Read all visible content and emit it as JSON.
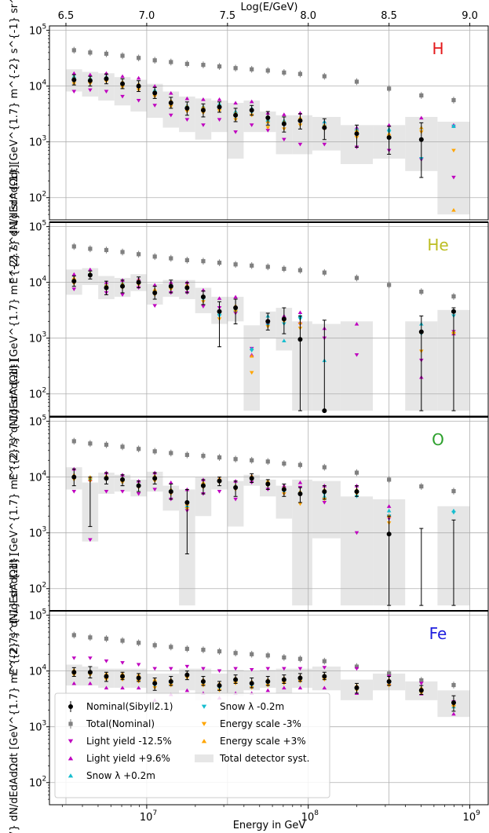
{
  "chart_data": {
    "type": "scatter",
    "x_axis": {
      "label": "Energy in GeV",
      "scale": "log",
      "range": [
        2500000,
        1300000000
      ],
      "ticks": [
        {
          "v": 10000000,
          "b": "10",
          "e": "7"
        },
        {
          "v": 100000000,
          "b": "10",
          "e": "8"
        },
        {
          "v": 1000000000,
          "b": "10",
          "e": "9"
        }
      ]
    },
    "top_axis": {
      "label": "Log(E/GeV)",
      "ticks": [
        "6.5",
        "7.0",
        "7.5",
        "8.0",
        "8.5",
        "9.0"
      ]
    },
    "y_axis": {
      "label": "E^{2.7} dN/dEdAdΩdt [GeV^{1.7} m^{-2} s^{-1} sr^{-1}]",
      "scale": "log",
      "range": [
        40,
        120000
      ],
      "ticks": [
        {
          "v": 100,
          "b": "10",
          "e": "2"
        },
        {
          "v": 1000,
          "b": "10",
          "e": "3"
        },
        {
          "v": 10000,
          "b": "10",
          "e": "4"
        },
        {
          "v": 100000,
          "b": "10",
          "e": "5"
        }
      ]
    },
    "legend": {
      "placement": "lower-left",
      "entries": [
        {
          "key": "nominal",
          "label": "Nominal(Sibyll2.1)"
        },
        {
          "key": "total",
          "label": "Total(Nominal)"
        },
        {
          "key": "ly_down",
          "label": "Light yield -12.5%"
        },
        {
          "key": "ly_up",
          "label": "Light yield +9.6%"
        },
        {
          "key": "snow_up",
          "label": "Snow λ +0.2m"
        },
        {
          "key": "snow_down",
          "label": "Snow λ -0.2m"
        },
        {
          "key": "es_down",
          "label": "Energy scale -3%"
        },
        {
          "key": "es_up",
          "label": "Energy scale +3%"
        },
        {
          "key": "syst",
          "label": "Total detector syst."
        }
      ]
    },
    "colors": {
      "nominal": "#000000",
      "total": "#808080",
      "ly_down": "#bf00bf",
      "ly_up": "#bf00bf",
      "snow_up": "#17becf",
      "snow_down": "#17becf",
      "es_down": "#ffa500",
      "es_up": "#ffa500",
      "syst": "#e6e6e6"
    },
    "log_energy_bins": [
      6.55,
      6.65,
      6.75,
      6.85,
      6.95,
      7.05,
      7.15,
      7.25,
      7.35,
      7.45,
      7.55,
      7.65,
      7.75,
      7.85,
      7.95,
      8.1,
      8.3,
      8.5,
      8.7,
      8.9
    ],
    "total": [
      44000,
      40000,
      38000,
      35000,
      32000,
      29000,
      27000,
      25000,
      24000,
      22500,
      21000,
      20000,
      19000,
      17500,
      16500,
      15000,
      12000,
      9000,
      6800,
      5600
    ],
    "panels": [
      {
        "label": "H",
        "label_color": "#e41a1c",
        "nominal": [
          13000,
          12500,
          13500,
          11000,
          10000,
          7500,
          5000,
          4000,
          3700,
          4200,
          3000,
          3700,
          2700,
          2100,
          2400,
          1800,
          1400,
          1200,
          1100,
          null
        ],
        "err_low": [
          10500,
          10000,
          11000,
          9000,
          8000,
          6000,
          4000,
          3000,
          2800,
          3400,
          2300,
          3000,
          2000,
          1500,
          1700,
          1100,
          800,
          600,
          230,
          null
        ],
        "err_high": [
          16000,
          15000,
          16500,
          13500,
          12500,
          9500,
          6300,
          5200,
          4800,
          5200,
          4000,
          4500,
          3500,
          2800,
          3200,
          2600,
          2000,
          1900,
          2200,
          null
        ],
        "syst_low": [
          8000,
          6500,
          5500,
          4500,
          3500,
          2700,
          1800,
          1500,
          1100,
          1500,
          500,
          1500,
          1500,
          600,
          600,
          700,
          400,
          500,
          300,
          50
        ],
        "syst_high": [
          20000,
          18000,
          17000,
          14500,
          13000,
          11000,
          8000,
          6500,
          6000,
          5500,
          5000,
          5500,
          3500,
          3000,
          3000,
          2800,
          2000,
          2000,
          2800,
          2300
        ],
        "ly_down": [
          8000,
          8500,
          8000,
          6500,
          5500,
          4500,
          3000,
          2500,
          2000,
          2500,
          1500,
          2000,
          1600,
          1100,
          900,
          900,
          800,
          700,
          480,
          230
        ],
        "ly_up": [
          17000,
          16000,
          17000,
          15000,
          14000,
          10000,
          7500,
          6000,
          5800,
          5800,
          5000,
          5300,
          3300,
          3100,
          3300,
          2300,
          1800,
          2000,
          2700,
          2000
        ],
        "snow_up": [
          15000,
          14000,
          15000,
          12000,
          11000,
          8500,
          5500,
          4500,
          4300,
          4800,
          3500,
          4000,
          2500,
          2400,
          2600,
          2300,
          1700,
          1700,
          1800,
          1900
        ],
        "snow_down": [
          12000,
          11500,
          12500,
          10500,
          9500,
          7000,
          4800,
          4000,
          3700,
          4000,
          2800,
          3400,
          2200,
          2000,
          2300,
          1900,
          1500,
          1500,
          500,
          1900
        ],
        "es_down": [
          11000,
          11000,
          12000,
          9500,
          8500,
          6500,
          4300,
          3500,
          3300,
          3600,
          2500,
          3000,
          1800,
          1700,
          2000,
          1700,
          1200,
          1200,
          1500,
          700
        ],
        "es_up": [
          14000,
          13500,
          14500,
          12000,
          11000,
          8000,
          5500,
          4400,
          4200,
          4500,
          3300,
          3800,
          2300,
          2300,
          2700,
          2000,
          1600,
          1400,
          1800,
          60
        ]
      },
      {
        "label": "He",
        "label_color": "#bcbd22",
        "nominal": [
          10500,
          13500,
          8000,
          8500,
          10000,
          6500,
          8500,
          8000,
          5500,
          3000,
          3500,
          null,
          2000,
          2200,
          950,
          50,
          null,
          null,
          1300,
          3000
        ],
        "err_low": [
          8500,
          11500,
          6000,
          6500,
          8000,
          5000,
          6500,
          6500,
          4000,
          700,
          1800,
          null,
          1400,
          1200,
          50,
          50,
          null,
          null,
          50,
          50
        ],
        "err_high": [
          13000,
          16000,
          10500,
          11000,
          12500,
          8500,
          11000,
          10000,
          7000,
          4500,
          5000,
          1500,
          2800,
          3500,
          2500,
          2100,
          850,
          680,
          2500,
          3500
        ],
        "syst_low": [
          6000,
          9000,
          5000,
          5500,
          7000,
          4000,
          5500,
          5000,
          2800,
          1800,
          2000,
          50,
          1000,
          600,
          50,
          50,
          50,
          50,
          50,
          50
        ],
        "syst_high": [
          17000,
          18000,
          13000,
          12000,
          14000,
          9500,
          11000,
          11000,
          8000,
          5500,
          5500,
          1700,
          3000,
          3500,
          2000,
          1800,
          2000,
          50,
          2000,
          3200
        ],
        "ly_down": [
          7500,
          13000,
          6500,
          6000,
          8000,
          3800,
          6500,
          6500,
          3700,
          3500,
          2800,
          650,
          2000,
          2200,
          1800,
          1000,
          500,
          null,
          400,
          1300
        ],
        "ly_up": [
          14000,
          17000,
          10000,
          11000,
          11500,
          9000,
          10000,
          10000,
          7300,
          5200,
          5500,
          500,
          1900,
          2500,
          2900,
          1500,
          1800,
          null,
          200,
          1200
        ],
        "snow_up": [
          11000,
          14000,
          9000,
          9500,
          10500,
          7000,
          8500,
          8500,
          5500,
          2800,
          3200,
          650,
          2500,
          900,
          2500,
          400,
          null,
          null,
          1800,
          3000
        ],
        "snow_down": [
          10500,
          13500,
          8500,
          9000,
          10000,
          6500,
          8500,
          8000,
          5000,
          2500,
          3000,
          600,
          1700,
          1800,
          2200,
          null,
          null,
          null,
          1200,
          2500
        ],
        "es_down": [
          9500,
          13000,
          7500,
          8000,
          9000,
          6000,
          7500,
          7500,
          4500,
          2200,
          3000,
          240,
          1600,
          2000,
          1500,
          null,
          null,
          null,
          580,
          1200
        ],
        "es_up": [
          12000,
          14500,
          9000,
          9500,
          11000,
          7500,
          9000,
          9000,
          5800,
          3000,
          3800,
          480,
          2000,
          2300,
          1900,
          null,
          null,
          null,
          1300,
          1300
        ]
      },
      {
        "label": "O",
        "label_color": "#2ca02c",
        "nominal": [
          10000,
          null,
          9500,
          9000,
          7000,
          9500,
          5500,
          3500,
          7000,
          8500,
          6500,
          9500,
          7500,
          6000,
          5000,
          5500,
          5500,
          950,
          null,
          null
        ],
        "err_low": [
          7000,
          1300,
          7500,
          7000,
          5500,
          7500,
          4000,
          420,
          5000,
          7000,
          4500,
          8000,
          6000,
          4500,
          3500,
          4000,
          4500,
          50,
          50,
          50
        ],
        "err_high": [
          14000,
          10000,
          12000,
          11000,
          8500,
          12000,
          7500,
          6000,
          9000,
          10000,
          8500,
          11500,
          9000,
          7500,
          6500,
          7000,
          7000,
          2000,
          1200,
          1700
        ],
        "syst_low": [
          6000,
          700,
          5000,
          5500,
          4500,
          5500,
          2500,
          50,
          2000,
          6000,
          1300,
          7000,
          4500,
          1800,
          50,
          800,
          50,
          50,
          50,
          50
        ],
        "syst_high": [
          15000,
          8000,
          12000,
          11000,
          9000,
          12500,
          7000,
          6000,
          10000,
          10000,
          8500,
          11000,
          9000,
          7000,
          9000,
          8500,
          4500,
          4000,
          50,
          3000
        ],
        "ly_down": [
          5500,
          750,
          5500,
          5500,
          5000,
          6000,
          4000,
          2500,
          5000,
          5500,
          4000,
          8000,
          6000,
          5000,
          6500,
          3500,
          1000,
          1800,
          null,
          null
        ],
        "ly_up": [
          14000,
          9000,
          12000,
          11000,
          8500,
          12000,
          8000,
          6000,
          9000,
          9500,
          8500,
          10500,
          8000,
          7000,
          8000,
          7000,
          7000,
          3000,
          null,
          null
        ],
        "snow_up": [
          10500,
          9500,
          10000,
          9000,
          7500,
          10000,
          6000,
          3000,
          7500,
          9000,
          7000,
          10000,
          8500,
          6000,
          5500,
          4500,
          6000,
          2500,
          null,
          2500
        ],
        "snow_down": [
          9500,
          9000,
          9500,
          8500,
          7000,
          9000,
          5500,
          2800,
          7000,
          8500,
          6500,
          9500,
          7500,
          5500,
          5000,
          5000,
          4500,
          2000,
          null,
          2300
        ],
        "es_down": [
          9000,
          8500,
          9000,
          8000,
          6500,
          8500,
          5000,
          2700,
          6500,
          8000,
          6000,
          9000,
          7000,
          5000,
          3300,
          4000,
          5000,
          1500,
          null,
          null
        ],
        "es_up": [
          11000,
          10000,
          10500,
          9500,
          7500,
          10500,
          6000,
          3300,
          8000,
          9500,
          7000,
          10500,
          8500,
          6500,
          5500,
          6000,
          6000,
          2000,
          null,
          null
        ]
      },
      {
        "label": "Fe",
        "label_color": "#1f1fde",
        "nominal": [
          9500,
          9500,
          8000,
          8000,
          7500,
          6000,
          6500,
          8500,
          6500,
          5500,
          7000,
          6000,
          6500,
          7000,
          7500,
          8000,
          5000,
          6500,
          4500,
          2700
        ],
        "err_low": [
          8000,
          7500,
          6500,
          7000,
          6500,
          4500,
          5500,
          7000,
          5500,
          4500,
          6000,
          5000,
          5500,
          6000,
          6500,
          7000,
          4000,
          5500,
          3800,
          1900
        ],
        "err_high": [
          11500,
          12000,
          9500,
          9500,
          9000,
          7500,
          8000,
          10000,
          8000,
          6500,
          8500,
          7500,
          8000,
          8500,
          9000,
          9500,
          6000,
          8000,
          5500,
          3600
        ],
        "syst_low": [
          5500,
          5500,
          5000,
          5000,
          5000,
          3800,
          3800,
          4500,
          3000,
          3500,
          3500,
          4500,
          5000,
          4000,
          5000,
          4500,
          3000,
          4500,
          3000,
          1500
        ],
        "syst_high": [
          13000,
          12000,
          11000,
          11000,
          11000,
          9000,
          9000,
          11000,
          11000,
          9000,
          10500,
          10000,
          10500,
          11000,
          11000,
          12000,
          7000,
          9000,
          6500,
          4500
        ],
        "ly_down": [
          17000,
          17000,
          15000,
          14000,
          13000,
          11000,
          11000,
          12000,
          11000,
          10000,
          11000,
          10500,
          11000,
          11000,
          11000,
          11500,
          11000,
          8000,
          6000,
          2800
        ],
        "ly_up": [
          6000,
          6000,
          5000,
          5000,
          5000,
          3000,
          3800,
          4500,
          4000,
          3300,
          4000,
          4000,
          4500,
          5000,
          5000,
          5000,
          4000,
          6000,
          3900,
          1700
        ],
        "snow_up": [
          10000,
          9500,
          8500,
          8500,
          8000,
          6500,
          6500,
          8500,
          6500,
          5500,
          7000,
          6000,
          6500,
          7000,
          7500,
          8500,
          5000,
          6500,
          4500,
          2300
        ],
        "snow_down": [
          9000,
          9000,
          7500,
          7500,
          7000,
          5500,
          6000,
          8000,
          6000,
          5000,
          6500,
          5500,
          6000,
          6500,
          7000,
          7500,
          4500,
          6000,
          4000,
          2600
        ],
        "es_down": [
          8500,
          8500,
          7000,
          7000,
          6500,
          5000,
          5500,
          7500,
          5500,
          4500,
          6000,
          5000,
          5500,
          6000,
          6500,
          7000,
          4500,
          5500,
          4000,
          2300
        ],
        "es_up": [
          10500,
          10000,
          9000,
          9000,
          8500,
          7000,
          7000,
          9000,
          7000,
          6000,
          7500,
          6500,
          7000,
          7500,
          8000,
          8500,
          5500,
          7000,
          5000,
          2500
        ]
      }
    ]
  }
}
